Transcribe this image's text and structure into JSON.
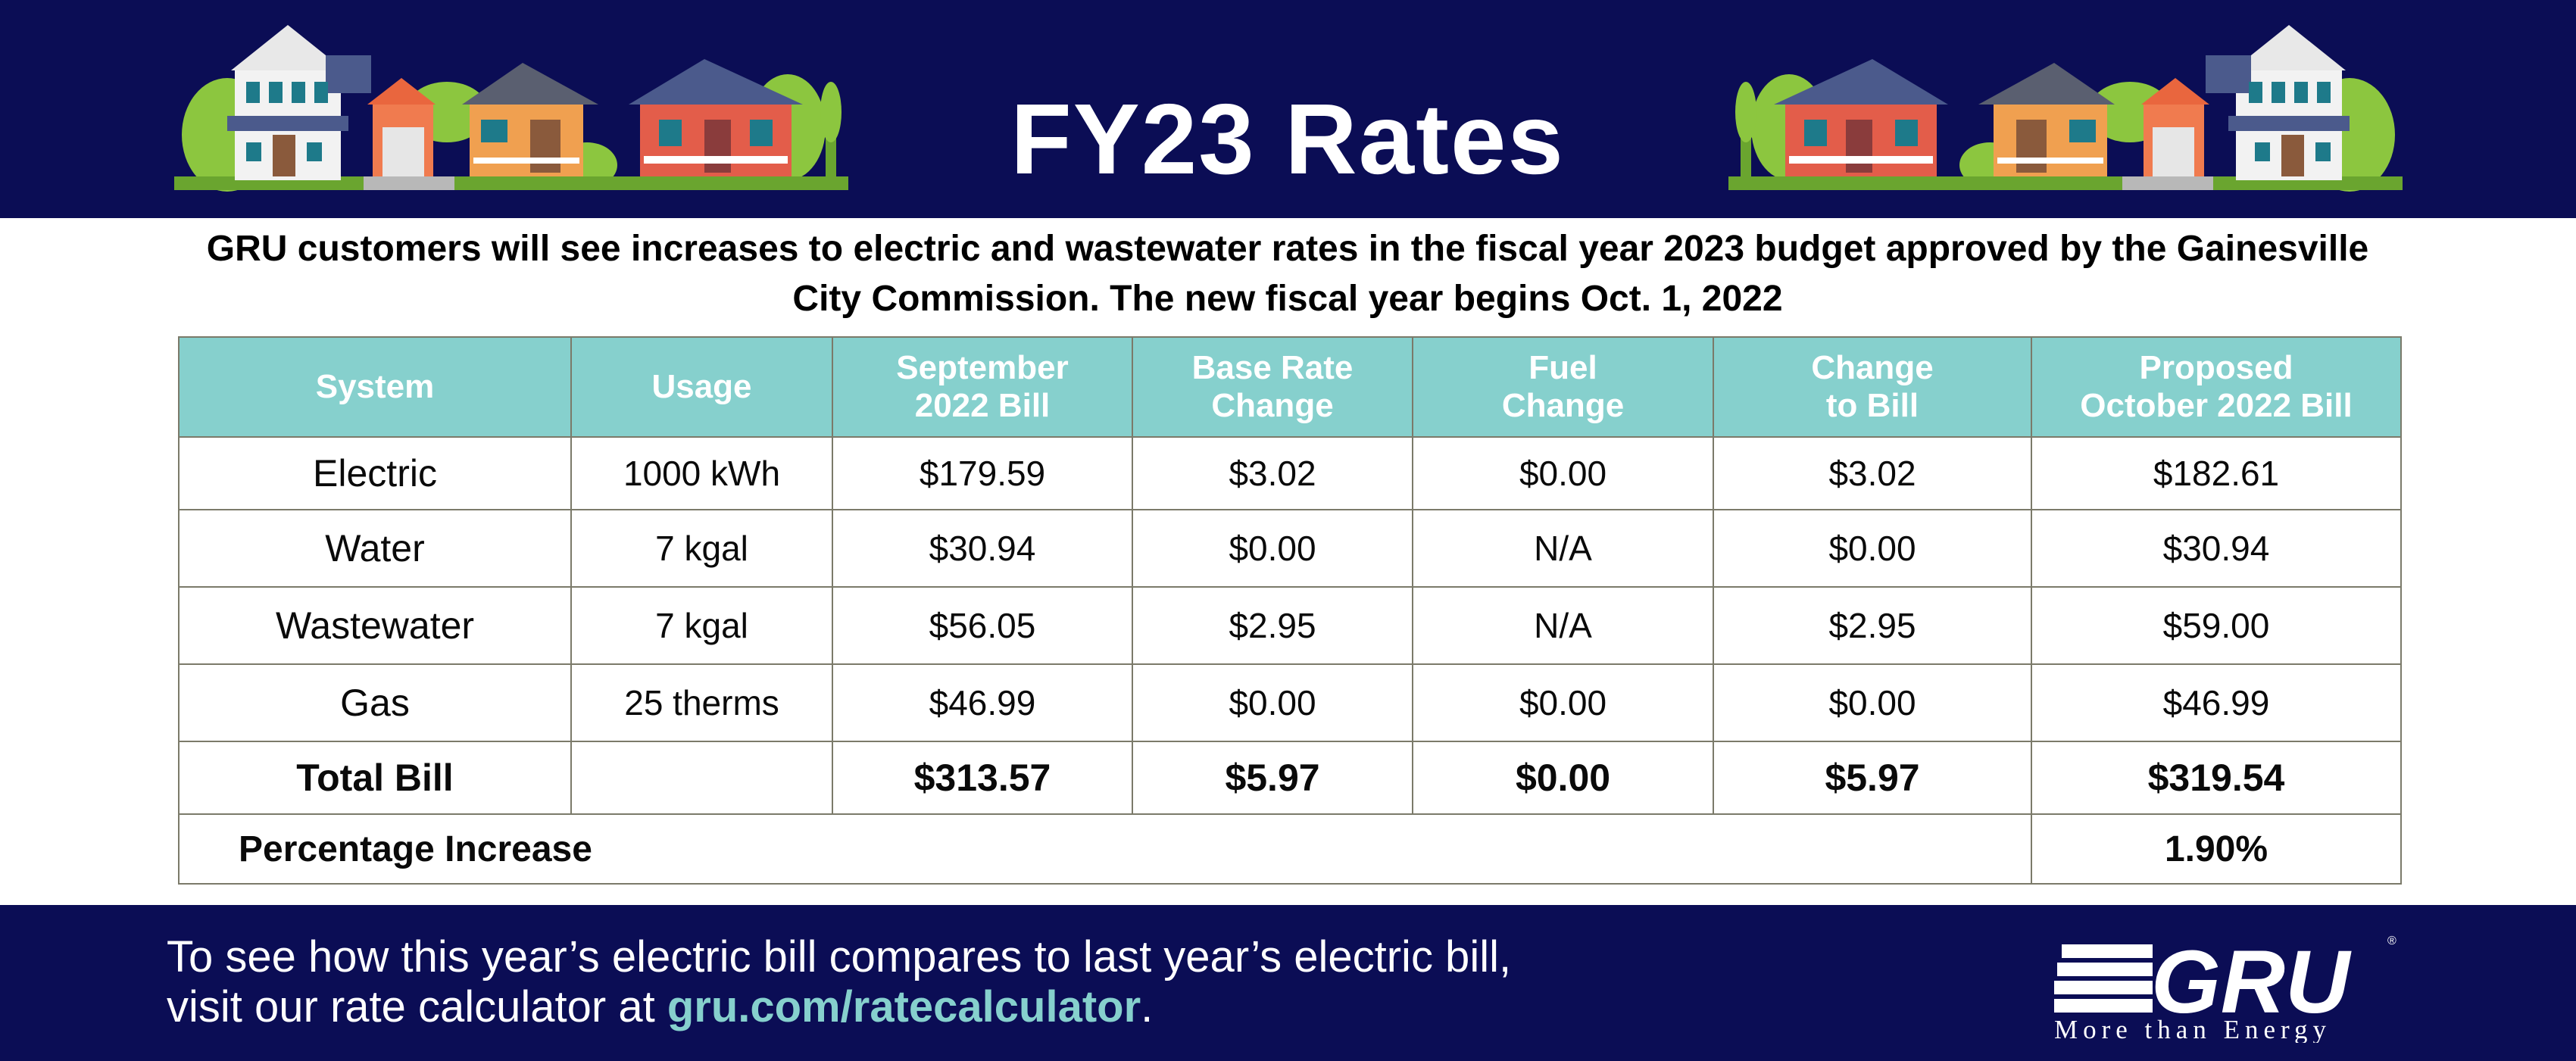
{
  "header": {
    "title": "FY23 Rates"
  },
  "intro": {
    "line1": "GRU customers will see increases to electric and wastewater rates in the fiscal year 2023 budget approved by the Gainesville",
    "line2": "City Commission. The new fiscal year begins Oct. 1, 2022"
  },
  "table": {
    "headers": [
      [
        "System"
      ],
      [
        "Usage"
      ],
      [
        "September",
        "2022 Bill"
      ],
      [
        "Base Rate",
        "Change"
      ],
      [
        "Fuel",
        "Change"
      ],
      [
        "Change",
        "to Bill"
      ],
      [
        "Proposed",
        "October 2022 Bill"
      ]
    ],
    "rows": [
      [
        "Electric",
        "1000 kWh",
        "$179.59",
        "$3.02",
        "$0.00",
        "$3.02",
        "$182.61"
      ],
      [
        "Water",
        "7 kgal",
        "$30.94",
        "$0.00",
        "N/A",
        "$0.00",
        "$30.94"
      ],
      [
        "Wastewater",
        "7 kgal",
        "$56.05",
        "$2.95",
        "N/A",
        "$2.95",
        "$59.00"
      ],
      [
        "Gas",
        "25 therms",
        "$46.99",
        "$0.00",
        "$0.00",
        "$0.00",
        "$46.99"
      ]
    ],
    "total": [
      "Total Bill",
      "",
      "$313.57",
      "$5.97",
      "$0.00",
      "$5.97",
      "$319.54"
    ],
    "percentage": {
      "label": "Percentage Increase",
      "value": "1.90%"
    }
  },
  "footer": {
    "line1": "To see how this year’s electric bill compares to last year’s electric bill,",
    "line2_prefix": "visit our rate calculator at ",
    "link": "gru.com/ratecalculator",
    "line2_suffix": ".",
    "logo": {
      "text": "GRU",
      "tagline": "More than Energy",
      "mark": "®"
    }
  },
  "colors": {
    "navy": "#0b0d55",
    "teal": "#86d0cd",
    "white": "#ffffff"
  },
  "icons": {
    "left_houses": "houses-illustration-icon",
    "right_houses": "houses-illustration-icon",
    "logo": "gru-logo-icon"
  }
}
